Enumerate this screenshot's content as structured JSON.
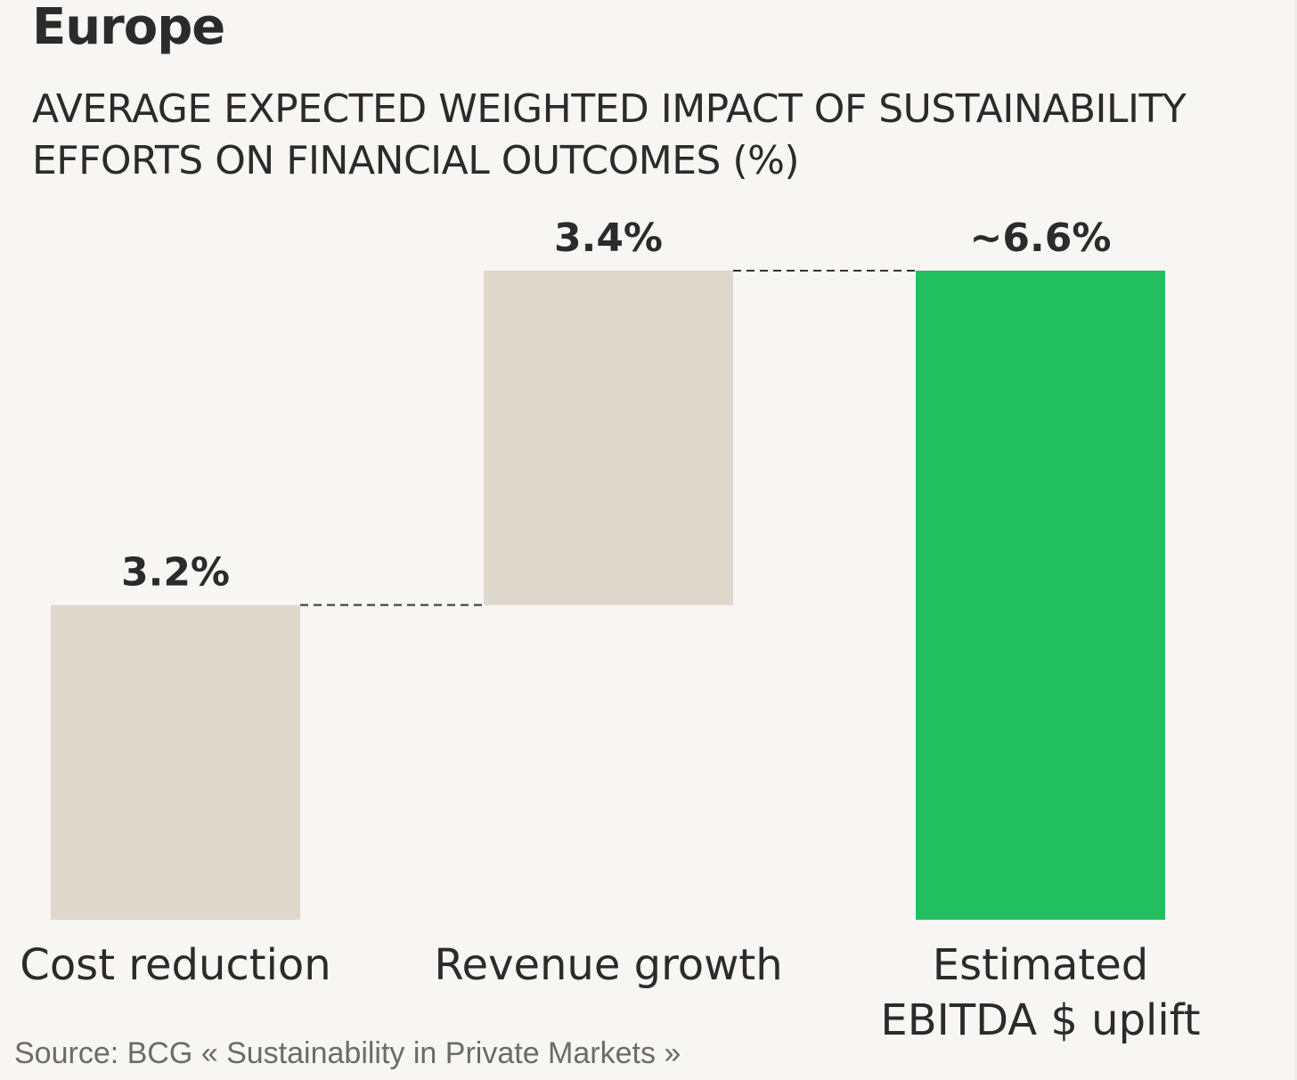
{
  "chart_data": {
    "type": "bar",
    "subtype": "waterfall",
    "title": "Europe",
    "subtitle": "AVERAGE EXPECTED WEIGHTED IMPACT OF SUSTAINABILITY EFFORTS ON FINANCIAL OUTCOMES (%)",
    "categories": [
      "Cost reduction",
      "Revenue growth",
      "Estimated EBITDA $ uplift"
    ],
    "values": [
      3.2,
      3.4,
      6.6
    ],
    "bases": [
      0,
      3.2,
      0
    ],
    "data_labels": [
      "3.2%",
      "3.4%",
      "~6.6%"
    ],
    "is_total": [
      false,
      false,
      true
    ],
    "ylim": [
      0,
      6.6
    ],
    "grid": false,
    "xlabel": "",
    "ylabel": "",
    "colors": {
      "step": "#dfd8cd",
      "total": "#22bf61",
      "connector": "#333333"
    }
  },
  "source": "Source: BCG « Sustainability in Private Markets »"
}
